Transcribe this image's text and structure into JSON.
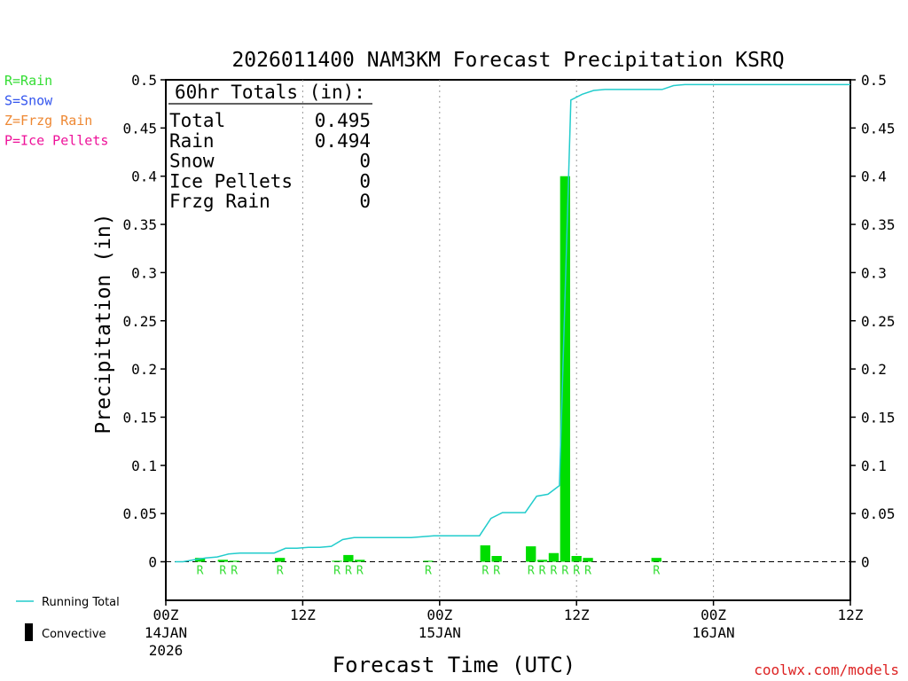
{
  "chart_data": {
    "type": "bar",
    "title": "2026011400 NAM3KM Forecast Precipitation KSRQ",
    "xlabel": "Forecast Time (UTC)",
    "ylabel": "Precipitation (in)",
    "ylim": [
      -0.04,
      0.5
    ],
    "xlim": [
      0,
      60
    ],
    "yticks": [
      0,
      0.05,
      0.1,
      0.15,
      0.2,
      0.25,
      0.3,
      0.35,
      0.4,
      0.45,
      0.5
    ],
    "ytick_labels": [
      "0",
      "0.05",
      "0.1",
      "0.15",
      "0.2",
      "0.25",
      "0.3",
      "0.35",
      "0.4",
      "0.45",
      "0.5"
    ],
    "xticks": [
      {
        "hour": 0,
        "label": "00Z",
        "date": "14JAN",
        "year": "2026"
      },
      {
        "hour": 12,
        "label": "12Z",
        "date": "",
        "year": ""
      },
      {
        "hour": 24,
        "label": "00Z",
        "date": "15JAN",
        "year": ""
      },
      {
        "hour": 36,
        "label": "12Z",
        "date": "",
        "year": ""
      },
      {
        "hour": 48,
        "label": "00Z",
        "date": "16JAN",
        "year": ""
      },
      {
        "hour": 60,
        "label": "12Z",
        "date": "",
        "year": ""
      }
    ],
    "grid": "vertical-dotted",
    "legend": {
      "types": [
        {
          "text": "R=Rain",
          "color": "#33dd33"
        },
        {
          "text": "S=Snow",
          "color": "#3355ee"
        },
        {
          "text": "Z=Frzg Rain",
          "color": "#ee8833"
        },
        {
          "text": "P=Ice Pellets",
          "color": "#ee1199"
        }
      ],
      "running_total_label": "Running Total",
      "convective_label": "Convective"
    },
    "totals_box": {
      "heading": "60hr Totals (in):",
      "rows": [
        {
          "label": "Total",
          "value": "0.495"
        },
        {
          "label": "Rain",
          "value": "0.494"
        },
        {
          "label": "Snow",
          "value": "0"
        },
        {
          "label": "Ice Pellets",
          "value": "0"
        },
        {
          "label": "Frzg Rain",
          "value": "0"
        }
      ]
    },
    "series": [
      {
        "name": "Precipitation",
        "color": "#00dd00",
        "bars": [
          {
            "hour": 3,
            "value": 0.004,
            "ptype": "R"
          },
          {
            "hour": 5,
            "value": 0.002,
            "ptype": "R"
          },
          {
            "hour": 6,
            "value": 0.001,
            "ptype": "R"
          },
          {
            "hour": 10,
            "value": 0.004,
            "ptype": "R"
          },
          {
            "hour": 15,
            "value": 0.001,
            "ptype": "R"
          },
          {
            "hour": 16,
            "value": 0.007,
            "ptype": "R"
          },
          {
            "hour": 17,
            "value": 0.002,
            "ptype": "R"
          },
          {
            "hour": 23,
            "value": 0.001,
            "ptype": "R"
          },
          {
            "hour": 28,
            "value": 0.017,
            "ptype": "R"
          },
          {
            "hour": 29,
            "value": 0.006,
            "ptype": "R"
          },
          {
            "hour": 32,
            "value": 0.016,
            "ptype": "R"
          },
          {
            "hour": 33,
            "value": 0.002,
            "ptype": "R"
          },
          {
            "hour": 34,
            "value": 0.009,
            "ptype": "R"
          },
          {
            "hour": 35,
            "value": 0.4,
            "ptype": "R"
          },
          {
            "hour": 36,
            "value": 0.006,
            "ptype": "R"
          },
          {
            "hour": 37,
            "value": 0.004,
            "ptype": "R"
          },
          {
            "hour": 43,
            "value": 0.004,
            "ptype": "R"
          }
        ]
      },
      {
        "name": "Running Total",
        "color": "#22cccc",
        "x": [
          0.8,
          1.5,
          2.5,
          3.5,
          4.5,
          5.5,
          6.5,
          7.5,
          8.5,
          9.5,
          10.5,
          11.5,
          12.5,
          13.5,
          14.5,
          15.5,
          16.5,
          17.5,
          18.5,
          19.5,
          20.5,
          21.5,
          22.5,
          23.5,
          24.5,
          25.5,
          26.5,
          27.5,
          28.5,
          29.5,
          30.5,
          31.5,
          32.5,
          33.5,
          34.5,
          35.5,
          36.5,
          37.5,
          38.5,
          39.5,
          40.5,
          41.5,
          42.5,
          43.5,
          44.5,
          45.5,
          46.5,
          47.5,
          48.5,
          49.5,
          50.5,
          51.5,
          52.5,
          53.5,
          54.5,
          55.5,
          56.5,
          57.5,
          58.5,
          59.5,
          60
        ],
        "values": [
          0,
          0,
          0.002,
          0.004,
          0.005,
          0.008,
          0.009,
          0.009,
          0.009,
          0.009,
          0.014,
          0.014,
          0.015,
          0.015,
          0.016,
          0.023,
          0.025,
          0.025,
          0.025,
          0.025,
          0.025,
          0.025,
          0.026,
          0.027,
          0.027,
          0.027,
          0.027,
          0.027,
          0.045,
          0.051,
          0.051,
          0.051,
          0.068,
          0.07,
          0.079,
          0.479,
          0.485,
          0.489,
          0.49,
          0.49,
          0.49,
          0.49,
          0.49,
          0.49,
          0.494,
          0.495,
          0.495,
          0.495,
          0.495,
          0.495,
          0.495,
          0.495,
          0.495,
          0.495,
          0.495,
          0.495,
          0.495,
          0.495,
          0.495,
          0.495,
          0.495
        ]
      }
    ]
  },
  "credit": "coolwx.com/models"
}
